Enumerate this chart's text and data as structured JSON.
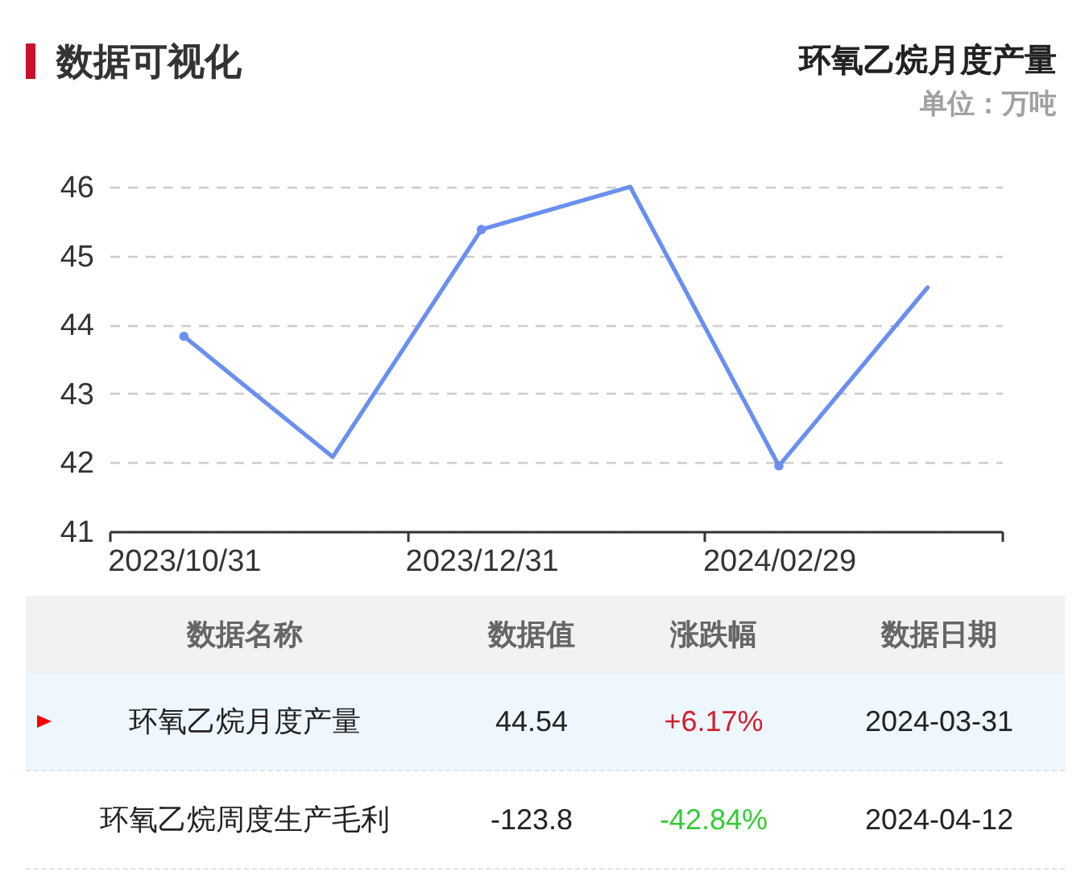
{
  "chart_data": [
    {
      "type": "line",
      "title": "环氧乙烷月度产量",
      "subtitle": "单位：万吨",
      "annotations": [
        "数据可视化"
      ],
      "categories": [
        "2023/10/31",
        null,
        "2023/12/31",
        null,
        "2024/02/29",
        null
      ],
      "series": [
        {
          "color": "#6b8ef0",
          "values": [
            43.83,
            42.08,
            45.38,
            46,
            41.95,
            44.54
          ]
        }
      ],
      "ylim": [
        41,
        46
      ],
      "yticks": [
        41,
        42,
        43,
        44,
        45,
        46
      ],
      "grid": "y",
      "marker": "circle"
    },
    {
      "type": "other",
      "annotations": [
        "数据名称",
        "数据值",
        "涨跌幅",
        "数据日期",
        "环氧乙烷月度产量",
        "44.54",
        "+6.17%",
        "2024-03-31",
        "环氧乙烷周度生产毛利",
        "-123.8",
        "-42.84%",
        "2024-04-12"
      ]
    }
  ]
}
